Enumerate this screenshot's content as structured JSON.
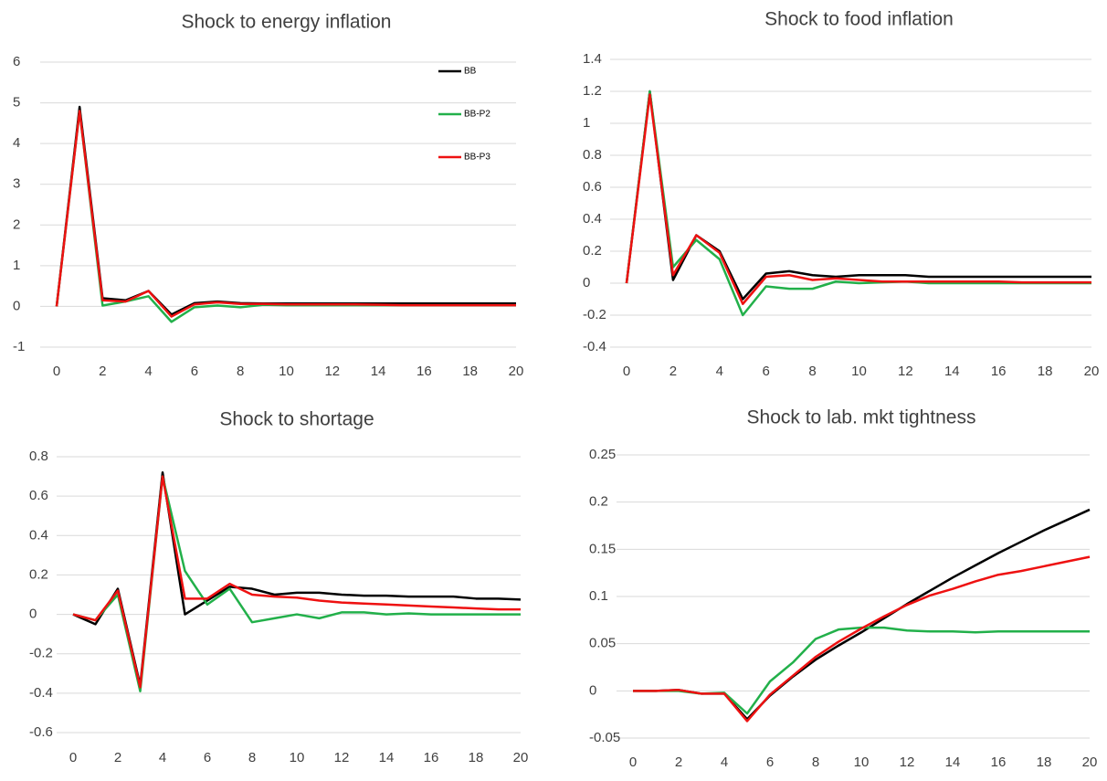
{
  "chart_data": [
    {
      "type": "line",
      "title": "Shock to energy inflation",
      "x": [
        0,
        1,
        2,
        3,
        4,
        5,
        6,
        7,
        8,
        9,
        10,
        11,
        12,
        13,
        14,
        15,
        16,
        17,
        18,
        19,
        20
      ],
      "xlim": [
        0,
        20
      ],
      "xticks": [
        0,
        2,
        4,
        6,
        8,
        10,
        12,
        14,
        16,
        18,
        20
      ],
      "ylim": [
        -1,
        6
      ],
      "yticks": [
        -1,
        0,
        1,
        2,
        3,
        4,
        5,
        6
      ],
      "grid": true,
      "legend": "upper right",
      "series": [
        {
          "name": "BB",
          "color": "#000000",
          "values": [
            0,
            4.9,
            0.2,
            0.15,
            0.38,
            -0.2,
            0.08,
            0.12,
            0.08,
            0.07,
            0.07,
            0.07,
            0.07,
            0.07,
            0.07,
            0.07,
            0.07,
            0.07,
            0.07,
            0.07,
            0.07
          ]
        },
        {
          "name": "BB-P2",
          "color": "#22b04a",
          "values": [
            0,
            4.8,
            0.02,
            0.12,
            0.25,
            -0.38,
            -0.02,
            0.02,
            -0.02,
            0.04,
            0.03,
            0.03,
            0.03,
            0.03,
            0.03,
            0.03,
            0.03,
            0.03,
            0.03,
            0.03,
            0.03
          ]
        },
        {
          "name": "BB-P3",
          "color": "#ee1111",
          "values": [
            0,
            4.8,
            0.15,
            0.12,
            0.38,
            -0.25,
            0.05,
            0.1,
            0.06,
            0.06,
            0.05,
            0.05,
            0.05,
            0.05,
            0.04,
            0.03,
            0.03,
            0.03,
            0.03,
            0.03,
            0.03
          ]
        }
      ]
    },
    {
      "type": "line",
      "title": "Shock to food inflation",
      "x": [
        0,
        1,
        2,
        3,
        4,
        5,
        6,
        7,
        8,
        9,
        10,
        11,
        12,
        13,
        14,
        15,
        16,
        17,
        18,
        19,
        20
      ],
      "xlim": [
        0,
        20
      ],
      "xticks": [
        0,
        2,
        4,
        6,
        8,
        10,
        12,
        14,
        16,
        18,
        20
      ],
      "ylim": [
        -0.4,
        1.4
      ],
      "yticks": [
        -0.4,
        -0.2,
        0,
        0.2,
        0.4,
        0.6,
        0.8,
        1,
        1.2,
        1.4
      ],
      "grid": true,
      "series": [
        {
          "color": "#000000",
          "values": [
            0,
            1.2,
            0.02,
            0.3,
            0.2,
            -0.1,
            0.06,
            0.075,
            0.05,
            0.04,
            0.05,
            0.05,
            0.05,
            0.04,
            0.04,
            0.04,
            0.04,
            0.04,
            0.04,
            0.04,
            0.04
          ]
        },
        {
          "color": "#22b04a",
          "values": [
            0,
            1.2,
            0.1,
            0.27,
            0.15,
            -0.2,
            -0.02,
            -0.035,
            -0.035,
            0.01,
            0,
            0.005,
            0.01,
            0,
            0,
            0,
            0,
            0,
            0,
            0,
            0
          ]
        },
        {
          "color": "#ee1111",
          "values": [
            0,
            1.18,
            0.05,
            0.3,
            0.19,
            -0.13,
            0.04,
            0.05,
            0.02,
            0.03,
            0.02,
            0.01,
            0.01,
            0.01,
            0.01,
            0.01,
            0.01,
            0.005,
            0.005,
            0.005,
            0.005
          ]
        }
      ]
    },
    {
      "type": "line",
      "title": "Shock to shortage",
      "x": [
        0,
        1,
        2,
        3,
        4,
        5,
        6,
        7,
        8,
        9,
        10,
        11,
        12,
        13,
        14,
        15,
        16,
        17,
        18,
        19,
        20
      ],
      "xlim": [
        0,
        20
      ],
      "xticks": [
        0,
        2,
        4,
        6,
        8,
        10,
        12,
        14,
        16,
        18,
        20
      ],
      "ylim": [
        -0.6,
        0.8
      ],
      "yticks": [
        -0.6,
        -0.4,
        -0.2,
        0,
        0.2,
        0.4,
        0.6,
        0.8
      ],
      "grid": true,
      "series": [
        {
          "color": "#000000",
          "values": [
            0,
            -0.05,
            0.13,
            -0.36,
            0.72,
            0,
            0.07,
            0.14,
            0.13,
            0.1,
            0.11,
            0.11,
            0.1,
            0.095,
            0.095,
            0.09,
            0.09,
            0.09,
            0.08,
            0.08,
            0.075
          ]
        },
        {
          "color": "#22b04a",
          "values": [
            0,
            -0.03,
            0.1,
            -0.39,
            0.7,
            0.22,
            0.05,
            0.13,
            -0.04,
            -0.02,
            0,
            -0.02,
            0.01,
            0.01,
            0,
            0.005,
            0,
            0,
            0,
            0,
            0
          ]
        },
        {
          "color": "#ee1111",
          "values": [
            0,
            -0.03,
            0.12,
            -0.37,
            0.7,
            0.08,
            0.08,
            0.155,
            0.1,
            0.09,
            0.085,
            0.07,
            0.06,
            0.055,
            0.05,
            0.045,
            0.04,
            0.035,
            0.03,
            0.025,
            0.025
          ]
        }
      ]
    },
    {
      "type": "line",
      "title": "Shock to lab. mkt tightness",
      "x": [
        0,
        1,
        2,
        3,
        4,
        5,
        6,
        7,
        8,
        9,
        10,
        11,
        12,
        13,
        14,
        15,
        16,
        17,
        18,
        19,
        20
      ],
      "xlim": [
        0,
        20
      ],
      "xticks": [
        0,
        2,
        4,
        6,
        8,
        10,
        12,
        14,
        16,
        18,
        20
      ],
      "ylim": [
        -0.05,
        0.25
      ],
      "yticks": [
        -0.05,
        0,
        0.05,
        0.1,
        0.15,
        0.2,
        0.25
      ],
      "grid": true,
      "series": [
        {
          "color": "#000000",
          "values": [
            0,
            0,
            0.001,
            -0.003,
            -0.003,
            -0.03,
            -0.005,
            0.015,
            0.033,
            0.048,
            0.062,
            0.077,
            0.092,
            0.106,
            0.12,
            0.133,
            0.146,
            0.158,
            0.17,
            0.181,
            0.192
          ]
        },
        {
          "color": "#22b04a",
          "values": [
            0,
            0,
            0,
            -0.003,
            -0.002,
            -0.024,
            0.01,
            0.03,
            0.055,
            0.065,
            0.067,
            0.067,
            0.064,
            0.063,
            0.063,
            0.062,
            0.063,
            0.063,
            0.063,
            0.063,
            0.063
          ]
        },
        {
          "color": "#ee1111",
          "values": [
            0,
            0,
            0.001,
            -0.003,
            -0.003,
            -0.032,
            -0.004,
            0.016,
            0.036,
            0.052,
            0.066,
            0.079,
            0.091,
            0.101,
            0.108,
            0.116,
            0.123,
            0.127,
            0.132,
            0.137,
            0.142
          ]
        }
      ]
    }
  ]
}
